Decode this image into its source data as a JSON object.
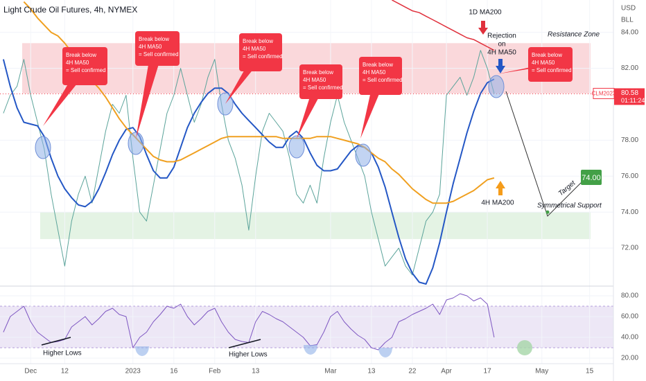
{
  "chart_data": {
    "type": "line",
    "title": "Light Crude Oil Futures, 4h, NYMEX",
    "currency": "USD",
    "unit": "BLL",
    "symbol": "CLM2023",
    "last_price": 80.58,
    "countdown": "01:11:24",
    "categories": [
      null,
      null,
      null,
      null,
      "Dec",
      null,
      null,
      null,
      null,
      "12",
      null,
      null,
      null,
      null,
      null,
      null,
      null,
      null,
      null,
      "2023",
      null,
      null,
      null,
      null,
      null,
      "16",
      null,
      null,
      null,
      null,
      null,
      "Feb",
      null,
      null,
      null,
      null,
      null,
      "13",
      null,
      null,
      null,
      null,
      null,
      null,
      null,
      null,
      null,
      null,
      "Mar",
      null,
      null,
      null,
      null,
      null,
      "13",
      null,
      null,
      null,
      null,
      null,
      "22",
      null,
      null,
      null,
      null,
      "Apr",
      null,
      null,
      null,
      null,
      null,
      "17",
      null,
      null,
      null,
      null,
      null,
      null,
      null,
      "May",
      null,
      null,
      null,
      null,
      null,
      null,
      "15",
      null,
      null,
      null
    ],
    "ylim": [
      70,
      85.8
    ],
    "yticks": [
      {
        "value": 84,
        "label": "84.00"
      },
      {
        "value": 82,
        "label": "82.00"
      },
      {
        "value": 78,
        "label": "78.00"
      },
      {
        "value": 76,
        "label": "76.00"
      },
      {
        "value": 74,
        "label": "74.00"
      },
      {
        "value": 72,
        "label": "72.00"
      }
    ],
    "y2lim": [
      15,
      88
    ],
    "y2ticks": [
      {
        "value": 80,
        "label": "80.00"
      },
      {
        "value": 60,
        "label": "60.00"
      },
      {
        "value": 40,
        "label": "40.00"
      },
      {
        "value": 20,
        "label": "20.00"
      }
    ],
    "y2band": [
      30,
      70
    ],
    "grid": true,
    "series": [
      {
        "color": "#5aa39a",
        "width": 1,
        "values": [
          79.5,
          80.5,
          81.0,
          82.5,
          80.5,
          79.0,
          77.5,
          75.0,
          73.0,
          71.0,
          73.5,
          75.0,
          76.0,
          74.5,
          76.5,
          78.5,
          80.0,
          79.5,
          80.5,
          77.0,
          74.0,
          73.5,
          75.5,
          77.5,
          79.5,
          80.5,
          82.0,
          80.5,
          79.0,
          80.0,
          81.5,
          82.5,
          80.0,
          78.0,
          77.0,
          75.5,
          73.0,
          76.0,
          78.5,
          79.5,
          79.0,
          78.5,
          77.0,
          75.0,
          74.5,
          75.5,
          74.5,
          77.0,
          79.0,
          80.5,
          79.0,
          78.0,
          77.0,
          76.0,
          74.0,
          72.5,
          71.0,
          71.5,
          72.0,
          71.0,
          70.5,
          72.0,
          73.5,
          74.0,
          75.0,
          80.5,
          81.0,
          81.5,
          80.5,
          81.5,
          83.0,
          82.0,
          80.6,
          null,
          null,
          null,
          null,
          null,
          null,
          null,
          null,
          null,
          null,
          null,
          null,
          null,
          null,
          null,
          null,
          null
        ]
      },
      {
        "color": "#2457c5",
        "width": 2,
        "values": [
          82.5,
          81.0,
          79.8,
          79.0,
          78.9,
          78.8,
          78.2,
          77.0,
          76.0,
          75.3,
          74.8,
          74.4,
          74.3,
          74.6,
          75.3,
          76.2,
          77.2,
          78.0,
          78.6,
          78.7,
          78.2,
          77.2,
          76.3,
          75.9,
          75.9,
          76.5,
          77.6,
          78.7,
          79.5,
          80.1,
          80.6,
          80.9,
          80.9,
          80.6,
          80.0,
          79.5,
          79.1,
          78.7,
          78.3,
          77.9,
          77.6,
          77.6,
          78.2,
          78.5,
          78.1,
          77.3,
          76.6,
          76.3,
          76.3,
          76.4,
          76.9,
          77.4,
          77.7,
          77.6,
          77.3,
          76.5,
          75.4,
          74.0,
          72.6,
          71.4,
          70.6,
          70.1,
          70.0,
          70.9,
          72.3,
          74.0,
          75.6,
          77.0,
          78.4,
          79.6,
          80.6,
          81.2,
          81.4,
          null,
          null,
          null,
          null,
          null,
          null,
          null,
          null,
          null,
          null,
          null,
          null,
          null,
          null,
          null,
          null,
          null
        ]
      },
      {
        "color": "#f0a020",
        "width": 2,
        "values": [
          null,
          null,
          null,
          85.7,
          85.3,
          84.8,
          84.4,
          84.0,
          83.8,
          83.4,
          82.9,
          82.3,
          81.8,
          81.3,
          80.9,
          80.4,
          79.8,
          79.2,
          78.7,
          78.3,
          77.9,
          77.5,
          77.1,
          76.9,
          76.8,
          76.8,
          76.9,
          77.1,
          77.3,
          77.5,
          77.7,
          77.9,
          78.1,
          78.2,
          78.2,
          78.2,
          78.2,
          78.2,
          78.2,
          78.2,
          78.2,
          78.1,
          78.1,
          78.1,
          78.1,
          78.1,
          78.2,
          78.2,
          78.2,
          78.1,
          78.0,
          77.9,
          77.8,
          77.6,
          77.3,
          77.0,
          76.8,
          76.4,
          76.1,
          75.7,
          75.3,
          75.0,
          74.7,
          74.5,
          74.5,
          74.5,
          74.6,
          74.8,
          75.0,
          75.2,
          75.5,
          75.8,
          75.9,
          null,
          null,
          null,
          null,
          null,
          null,
          null,
          null,
          null,
          null,
          null,
          null,
          null,
          null,
          null,
          null,
          null
        ]
      },
      {
        "color": "#e0303c",
        "width": 1.5,
        "values": [
          null,
          null,
          null,
          null,
          null,
          null,
          null,
          null,
          null,
          null,
          null,
          null,
          null,
          null,
          null,
          null,
          null,
          null,
          null,
          null,
          null,
          null,
          null,
          null,
          null,
          null,
          null,
          null,
          null,
          null,
          null,
          null,
          null,
          null,
          null,
          null,
          null,
          null,
          null,
          null,
          null,
          null,
          null,
          null,
          null,
          null,
          null,
          null,
          null,
          null,
          null,
          null,
          null,
          null,
          null,
          null,
          null,
          85.8,
          85.6,
          85.4,
          85.2,
          85.1,
          84.9,
          84.7,
          84.5,
          84.3,
          84.1,
          83.9,
          83.7,
          83.6,
          83.4,
          83.2,
          83.0,
          null,
          null,
          null,
          null,
          null,
          null,
          null,
          null,
          null,
          null,
          null,
          null,
          null,
          null,
          null,
          null,
          null
        ]
      },
      {
        "color": "#7e57c2",
        "width": 1,
        "axis": "y2",
        "values": [
          45,
          60,
          65,
          70,
          55,
          45,
          40,
          35,
          36,
          38,
          50,
          55,
          60,
          52,
          58,
          65,
          68,
          62,
          60,
          30,
          40,
          45,
          55,
          62,
          70,
          68,
          72,
          60,
          52,
          58,
          65,
          68,
          55,
          45,
          38,
          36,
          35,
          55,
          65,
          62,
          58,
          55,
          50,
          45,
          40,
          32,
          33,
          45,
          60,
          65,
          55,
          48,
          42,
          38,
          30,
          28,
          35,
          40,
          55,
          58,
          62,
          65,
          68,
          72,
          62,
          76,
          78,
          82,
          80,
          75,
          78,
          72,
          40,
          null,
          null,
          null,
          null,
          null,
          null,
          null,
          null,
          null,
          null,
          null,
          null,
          null,
          null,
          null,
          null,
          null
        ]
      }
    ],
    "zones": [
      {
        "label": "Resistance Zone",
        "range": [
          80.6,
          83.4
        ],
        "color": "#f8c8cc"
      },
      {
        "label": "Symmetrical Support",
        "range": [
          72.5,
          74.0
        ],
        "color": "#d8eed8"
      }
    ],
    "callouts": [
      {
        "lines": [
          "Break below",
          "4H MA50",
          "= Sell confirmed"
        ]
      },
      {
        "lines": [
          "Break below",
          "4H MA50",
          "= Sell confirmed"
        ]
      },
      {
        "lines": [
          "Break below",
          "4H MA50",
          "= Sell confirmed"
        ]
      },
      {
        "lines": [
          "Break below",
          "4H MA50",
          "= Sell confirmed"
        ]
      },
      {
        "lines": [
          "Break below",
          "4H MA50",
          "= Sell confirmed"
        ]
      },
      {
        "lines": [
          "Break below",
          "4H MA50",
          "= Sell confirmed"
        ]
      }
    ],
    "notes": {
      "ma200_1d": "1D MA200",
      "rejection": [
        "Rejection",
        "on",
        "4H MA50"
      ],
      "ma200_4h": "4H MA200",
      "target_text": "Target",
      "higher_lows": [
        "Higher Lows",
        "Higher Lows"
      ]
    },
    "target": {
      "value": 74,
      "label": "74.00"
    }
  }
}
